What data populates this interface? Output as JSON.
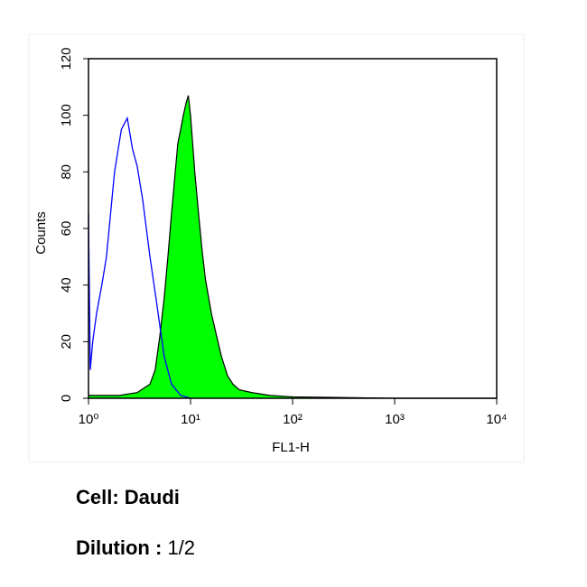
{
  "chart_data": {
    "type": "histogram-overlay",
    "xlabel": "FL1-H",
    "ylabel": "Counts",
    "xscale": "log",
    "xlim": [
      1,
      10000
    ],
    "ylim": [
      0,
      120
    ],
    "xticks": [
      {
        "value": 1,
        "label": "10⁰"
      },
      {
        "value": 10,
        "label": "10¹"
      },
      {
        "value": 100,
        "label": "10²"
      },
      {
        "value": 1000,
        "label": "10³"
      },
      {
        "value": 10000,
        "label": "10⁴"
      }
    ],
    "yticks": [
      0,
      20,
      40,
      60,
      80,
      100,
      120
    ],
    "series": [
      {
        "color": "#00ff00",
        "outline": "#000000",
        "filled": true,
        "x": [
          1,
          2,
          3,
          4,
          4.5,
          5,
          5.5,
          6,
          6.5,
          7,
          7.5,
          8,
          8.5,
          9,
          9.5,
          10,
          11,
          12,
          13,
          14,
          16,
          18,
          20,
          23,
          26,
          30,
          40,
          60,
          100,
          1000,
          10000
        ],
        "values": [
          1,
          1,
          2,
          5,
          10,
          22,
          35,
          50,
          65,
          78,
          90,
          95,
          100,
          104,
          107,
          100,
          80,
          65,
          52,
          42,
          30,
          22,
          15,
          8,
          5,
          3,
          2,
          1,
          0.5,
          0,
          0
        ]
      },
      {
        "color": "#0000ff",
        "filled": false,
        "x": [
          1,
          1.04,
          1.1,
          1.2,
          1.35,
          1.5,
          1.8,
          2.1,
          2.4,
          2.7,
          3,
          3.4,
          4,
          4.6,
          5.5,
          6.5,
          8,
          10
        ],
        "values": [
          65,
          10,
          20,
          30,
          40,
          50,
          80,
          95,
          99,
          88,
          82,
          70,
          50,
          35,
          15,
          5,
          1,
          0
        ]
      }
    ]
  },
  "caption": {
    "cell": "Cell: Daudi",
    "dilution_label": "Dilution :",
    "dilution_value": "1/2"
  }
}
